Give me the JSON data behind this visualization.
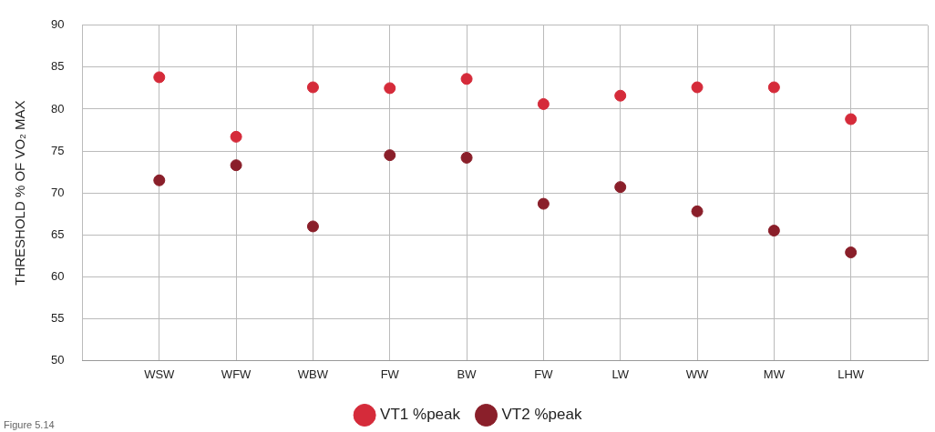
{
  "chart_data": {
    "type": "scatter",
    "ylabel": "THRESHOLD % OF VO₂ MAX",
    "annotations": [
      "Figure 5.14"
    ],
    "categories": [
      null,
      "WSW",
      "WFW",
      "WBW",
      "FW",
      "BW",
      "FW",
      "LW",
      "WW",
      "MW",
      "LHW",
      null
    ],
    "series": [
      {
        "name": "VT1 %peak",
        "color": "#d52b3a",
        "values": [
          null,
          83.8,
          76.7,
          82.6,
          82.5,
          83.6,
          80.6,
          81.6,
          82.6,
          82.6,
          78.8,
          null
        ]
      },
      {
        "name": "VT2 %peak",
        "color": "#8a1f2a",
        "values": [
          null,
          71.5,
          73.3,
          66.0,
          74.5,
          74.2,
          68.7,
          70.7,
          67.8,
          65.5,
          62.9,
          null
        ]
      }
    ],
    "ylim": [
      50,
      90
    ],
    "yticks": [
      50,
      55,
      60,
      65,
      70,
      75,
      80,
      85,
      90
    ],
    "grid": true,
    "legend": "bottom",
    "marker": "circle"
  }
}
